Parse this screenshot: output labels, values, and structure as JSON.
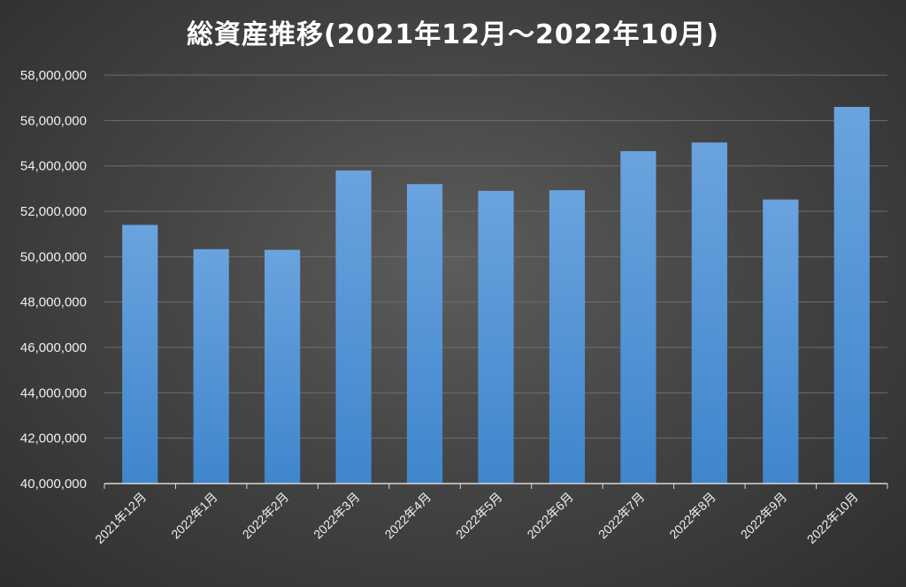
{
  "chart_data": {
    "type": "bar",
    "title": "総資産推移(2021年12月～2022年10月)",
    "xlabel": "",
    "ylabel": "",
    "categories": [
      "2021年12月",
      "2022年1月",
      "2022年2月",
      "2022年3月",
      "2022年4月",
      "2022年5月",
      "2022年6月",
      "2022年7月",
      "2022年8月",
      "2022年9月",
      "2022年10月"
    ],
    "values": [
      51400000,
      50330000,
      50300000,
      53800000,
      53200000,
      52900000,
      52930000,
      54650000,
      55030000,
      52520000,
      56600000
    ],
    "ylim": [
      40000000,
      58000000
    ],
    "yticks": [
      "40,000,000",
      "42,000,000",
      "44,000,000",
      "46,000,000",
      "48,000,000",
      "50,000,000",
      "52,000,000",
      "54,000,000",
      "56,000,000",
      "58,000,000"
    ],
    "grid": true,
    "legend": "none",
    "colors": {
      "bar_top": "#6aa3de",
      "bar_bottom": "#3f86cc",
      "grid": "#6e6e6e",
      "axis": "#d8d8d8"
    }
  }
}
